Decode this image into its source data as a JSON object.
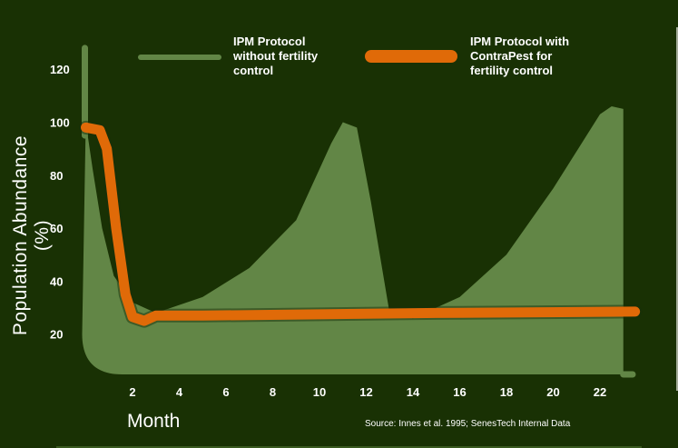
{
  "chart_data": {
    "type": "area",
    "title": "",
    "xlabel": "Month",
    "ylabel": "Population Abundance (%)",
    "xlim": [
      0,
      23.5
    ],
    "ylim": [
      0,
      130
    ],
    "x_ticks": [
      2,
      4,
      6,
      8,
      10,
      12,
      14,
      16,
      18,
      20,
      22
    ],
    "y_ticks": [
      20,
      40,
      60,
      80,
      100,
      120
    ],
    "grid": false,
    "legend_position": "top",
    "series": [
      {
        "name": "IPM Protocol without fertility control",
        "color": "#628646",
        "points": [
          [
            0,
            100
          ],
          [
            0.3,
            82
          ],
          [
            0.7,
            60
          ],
          [
            1.2,
            42
          ],
          [
            2,
            32
          ],
          [
            3,
            28
          ],
          [
            5,
            34
          ],
          [
            7,
            45
          ],
          [
            9,
            63
          ],
          [
            10.5,
            92
          ],
          [
            11,
            100
          ],
          [
            11.6,
            98
          ],
          [
            12.2,
            70
          ],
          [
            13,
            28
          ],
          [
            14,
            26
          ],
          [
            16,
            34
          ],
          [
            18,
            50
          ],
          [
            20,
            75
          ],
          [
            22,
            103
          ],
          [
            22.5,
            106
          ],
          [
            23,
            105
          ]
        ]
      },
      {
        "name": "IPM Protocol with ContraPest for fertility control",
        "color": "#e06a08",
        "points": [
          [
            0,
            98
          ],
          [
            0.6,
            97
          ],
          [
            0.9,
            90
          ],
          [
            1.3,
            60
          ],
          [
            1.7,
            35
          ],
          [
            2.0,
            26.5
          ],
          [
            2.5,
            25
          ],
          [
            3,
            27
          ],
          [
            5,
            27
          ],
          [
            10,
            27.5
          ],
          [
            15,
            28
          ],
          [
            23.5,
            28.5
          ]
        ]
      }
    ],
    "source": "Source: Innes et al. 1995; SenesTech Internal Data"
  },
  "legend": {
    "item1": [
      "IPM Protocol",
      "without fertility",
      "control"
    ],
    "item2": [
      "IPM Protocol with",
      "ContraPest for",
      "fertility control"
    ]
  }
}
